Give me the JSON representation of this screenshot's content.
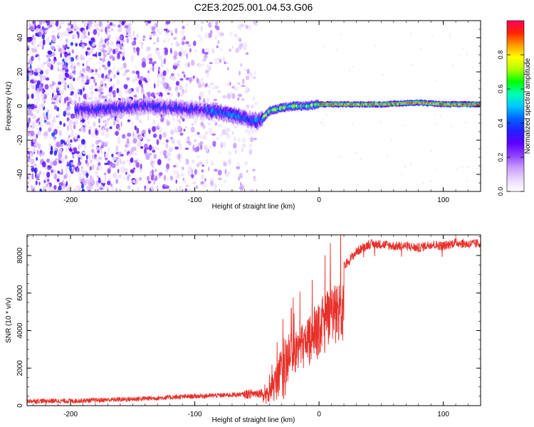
{
  "figure": {
    "title": "C2E3.2025.001.04.53.G06"
  },
  "colors": {
    "snr_line": "#e8302a",
    "colormap": [
      "#ffffff",
      "#e9d6ff",
      "#c79bff",
      "#8a3dff",
      "#5a00ff",
      "#2020ff",
      "#0066ff",
      "#00c8ff",
      "#00ffb0",
      "#00ff00",
      "#b0ff00",
      "#ffff00",
      "#ff9900",
      "#ff2200",
      "#ff0060"
    ]
  },
  "chart_data": [
    {
      "type": "heatmap",
      "title": "C2E3.2025.001.04.53.G06",
      "xlabel": "Height of straight line (km)",
      "ylabel": "Frequency (Hz)",
      "xlim": [
        -235,
        130
      ],
      "ylim": [
        -50,
        50
      ],
      "xticks": [
        -200,
        -100,
        0,
        100
      ],
      "xtick_labels": [
        "-200",
        "-100",
        "0",
        "100"
      ],
      "yticks": [
        -40,
        -20,
        0,
        20,
        40
      ],
      "ytick_labels": [
        "-40",
        "-20",
        "0",
        "20",
        "40"
      ],
      "colorbar": {
        "label": "Normalized spectral amplitude",
        "range": [
          0,
          1
        ],
        "ticks": [
          0.0,
          0.2,
          0.4,
          0.6,
          0.8
        ],
        "tick_labels": [
          "0.0",
          "0.2",
          "0.4",
          "0.6",
          "0.8"
        ]
      },
      "ridge_center_hz": {
        "x": [
          -195,
          -180,
          -160,
          -140,
          -120,
          -100,
          -85,
          -70,
          -60,
          -50,
          -45,
          -40,
          -30,
          -20,
          -10,
          0,
          20,
          50,
          80,
          100,
          130
        ],
        "y": [
          -2,
          -2,
          -1,
          0,
          -1,
          -2,
          -3,
          -5,
          -7,
          -9,
          -7,
          -3,
          -1,
          0,
          0,
          1,
          1,
          1,
          2,
          1,
          1
        ]
      }
    },
    {
      "type": "line",
      "xlabel": "Height of straight line (km)",
      "ylabel": "SNR (10 * v/v)",
      "xlim": [
        -235,
        130
      ],
      "ylim": [
        0,
        9100
      ],
      "xticks": [
        -200,
        -100,
        0,
        100
      ],
      "xtick_labels": [
        "-200",
        "-100",
        "0",
        "100"
      ],
      "yticks": [
        0,
        2000,
        4000,
        6000,
        8000
      ],
      "ytick_labels": [
        "0",
        "2000",
        "4000",
        "6000",
        "8000"
      ],
      "snr_envelope": {
        "x": [
          -235,
          -200,
          -150,
          -100,
          -80,
          -60,
          -45,
          -40,
          -35,
          -30,
          -25,
          -20,
          -15,
          -10,
          -5,
          0,
          10,
          20,
          30,
          40,
          50,
          60,
          70,
          80,
          90,
          100,
          110,
          120,
          130
        ],
        "y": [
          250,
          250,
          350,
          500,
          550,
          600,
          700,
          1200,
          2200,
          3500,
          3800,
          3900,
          4200,
          4600,
          5000,
          5600,
          6500,
          7400,
          8200,
          8600,
          8600,
          8500,
          8500,
          8400,
          8600,
          8500,
          8700,
          8600,
          8650
        ]
      }
    }
  ]
}
